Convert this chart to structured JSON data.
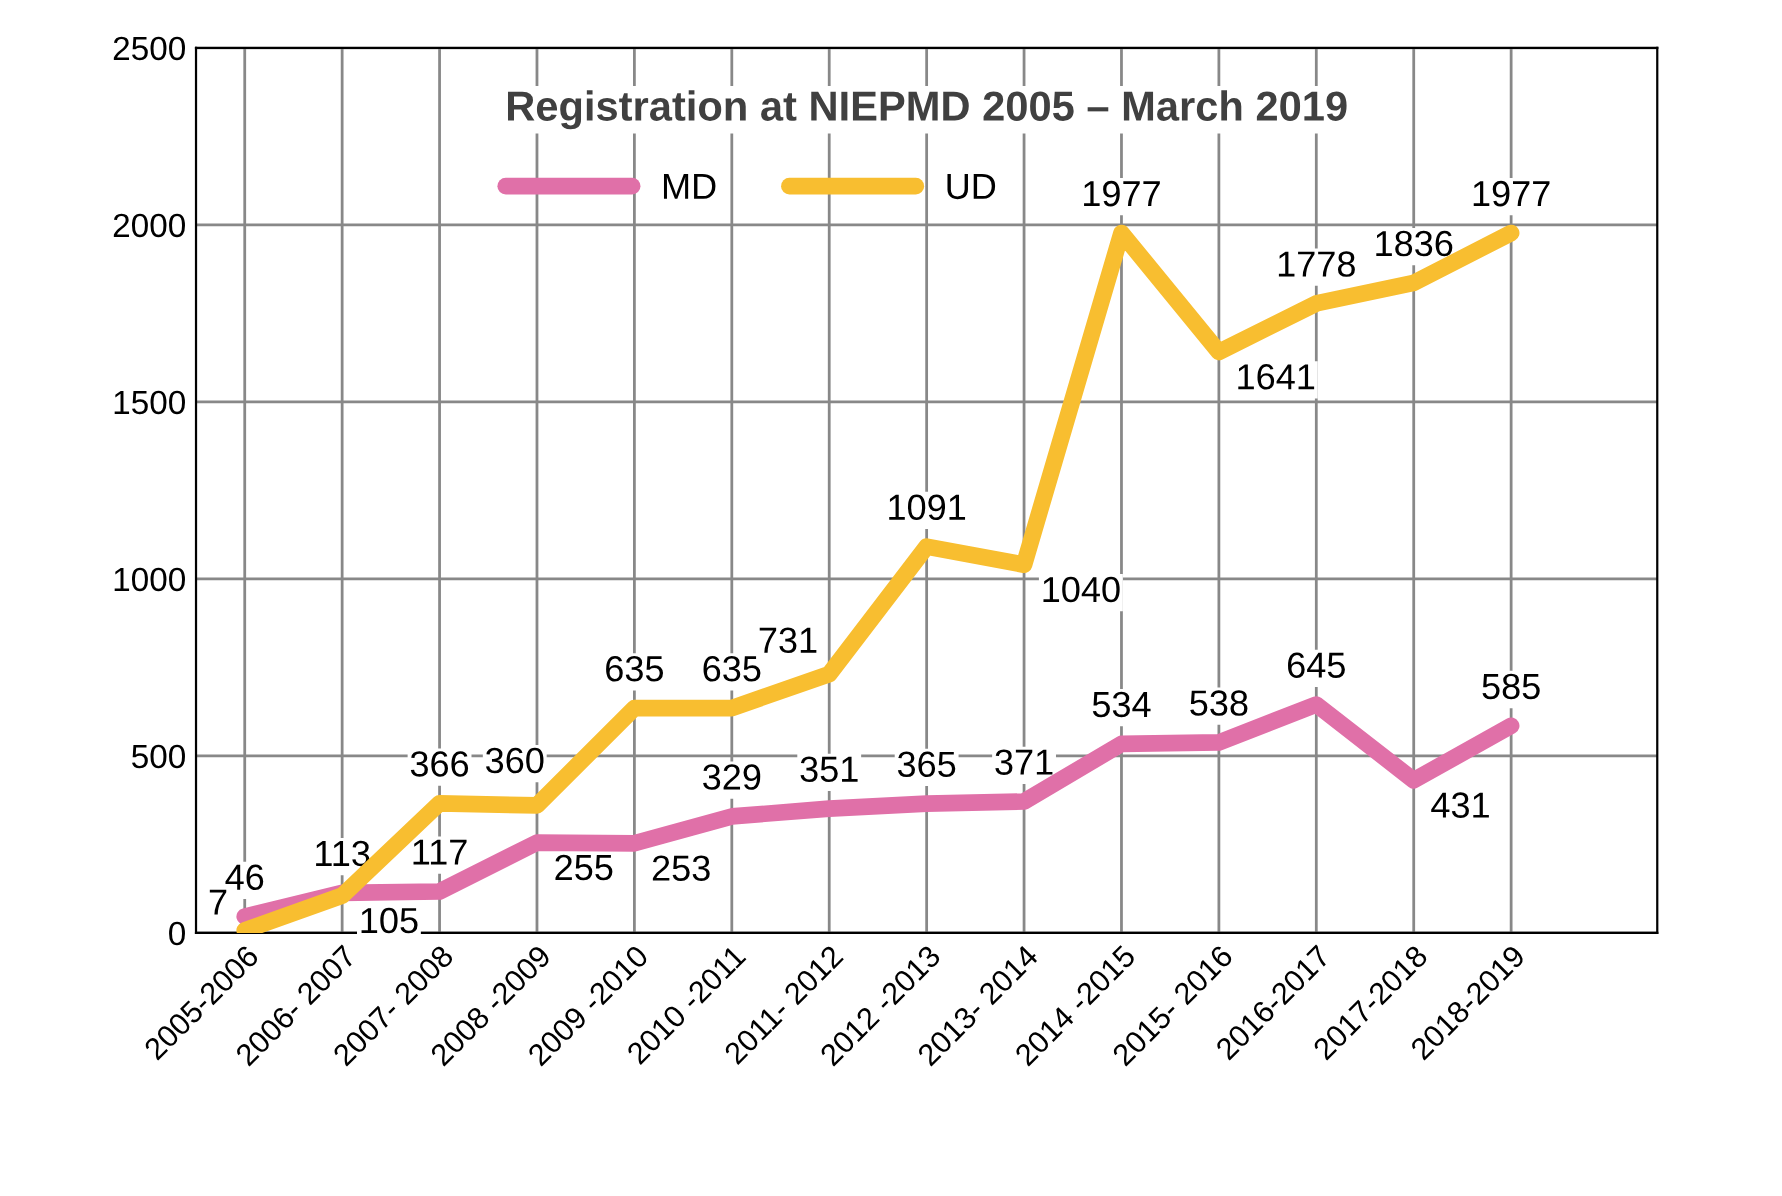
{
  "chart_data": {
    "type": "line",
    "title": "Registration at NIEPMD 2005 – March 2019",
    "categories": [
      "2005-2006",
      "2006- 2007",
      "2007- 2008",
      "2008 -2009",
      "2009 -2010",
      "2010 -2011",
      "2011- 2012",
      "2012 -2013",
      "2013- 2014",
      "2014 -2015",
      "2015- 2016",
      "2016-2017",
      "2017-2018",
      "2018-2019"
    ],
    "series": [
      {
        "name": "MD",
        "color": "#e070a8",
        "values": [
          46,
          113,
          117,
          255,
          253,
          329,
          351,
          365,
          371,
          534,
          538,
          645,
          431,
          585
        ]
      },
      {
        "name": "UD",
        "color": "#f8be30",
        "values": [
          7,
          105,
          366,
          360,
          635,
          635,
          731,
          1091,
          1040,
          1977,
          1641,
          1778,
          1836,
          1977
        ]
      }
    ],
    "ylim": [
      0,
      2500
    ],
    "yticks": [
      0,
      500,
      1000,
      1500,
      2000,
      2500
    ],
    "grid": true,
    "legend": "top",
    "data_labels": true,
    "marker": "none",
    "line_style": "solid"
  }
}
